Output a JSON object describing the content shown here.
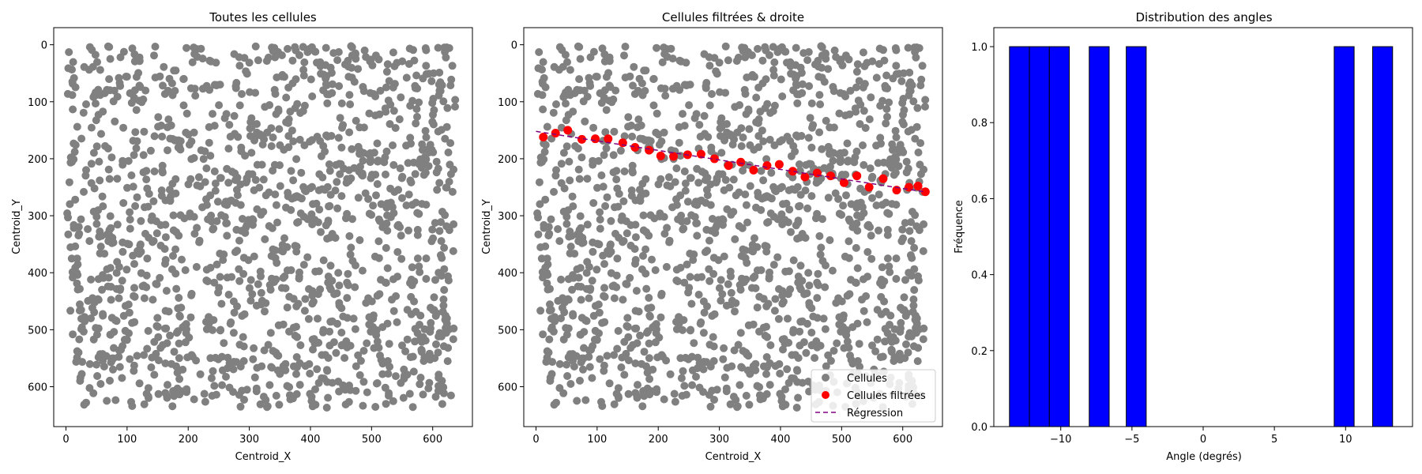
{
  "figure": {
    "panels": [
      {
        "title": "Toutes les cellules",
        "xlabel": "Centroid_X",
        "ylabel": "Centroid_Y"
      },
      {
        "title": "Cellules filtrées & droite",
        "xlabel": "Centroid_X",
        "ylabel": "Centroid_Y"
      },
      {
        "title": "Distribution des angles",
        "xlabel": "Angle (degrés)",
        "ylabel": "Fréquence"
      }
    ]
  },
  "chart_data": [
    {
      "type": "scatter",
      "title": "Toutes les cellules",
      "xlabel": "Centroid_X",
      "ylabel": "Centroid_Y",
      "xlim": [
        -20,
        665
      ],
      "ylim": [
        670,
        -30
      ],
      "y_inverted": true,
      "xticks": [
        0,
        100,
        200,
        300,
        400,
        500,
        600
      ],
      "yticks": [
        0,
        100,
        200,
        300,
        400,
        500,
        600
      ],
      "series": [
        {
          "color": "#808080",
          "description": "about 1500 grey cell centroids spread uniformly over x 0–640, y 0–640",
          "sample_points": [
            [
              5,
              30
            ],
            [
              40,
              80
            ],
            [
              120,
              140
            ],
            [
              220,
              210
            ],
            [
              310,
              300
            ],
            [
              420,
              380
            ],
            [
              510,
              460
            ],
            [
              600,
              540
            ],
            [
              90,
              620
            ],
            [
              630,
              610
            ]
          ]
        }
      ]
    },
    {
      "type": "scatter",
      "title": "Cellules filtrées & droite",
      "xlabel": "Centroid_X",
      "ylabel": "Centroid_Y",
      "xlim": [
        -20,
        665
      ],
      "ylim": [
        670,
        -30
      ],
      "y_inverted": true,
      "xticks": [
        0,
        100,
        200,
        300,
        400,
        500,
        600
      ],
      "yticks": [
        0,
        100,
        200,
        300,
        400,
        500,
        600
      ],
      "legend": {
        "position": "lower-right",
        "entries": [
          "Cellules",
          "Cellules filtrées",
          "Régression"
        ]
      },
      "series": [
        {
          "name": "Cellules",
          "color": "#808080",
          "marker": "circle"
        },
        {
          "name": "Cellules filtrées",
          "color": "#ff0000",
          "marker": "circle",
          "x": [
            12,
            32,
            52,
            75,
            97,
            118,
            142,
            162,
            185,
            204,
            225,
            248,
            270,
            292,
            315,
            335,
            356,
            378,
            398,
            420,
            440,
            460,
            482,
            504,
            525,
            545,
            568,
            590,
            610,
            625,
            637
          ],
          "y": [
            162,
            155,
            150,
            166,
            165,
            165,
            172,
            180,
            185,
            195,
            196,
            193,
            192,
            200,
            212,
            206,
            220,
            212,
            210,
            222,
            232,
            225,
            230,
            242,
            230,
            250,
            235,
            255,
            250,
            248,
            258
          ]
        },
        {
          "name": "Régression",
          "color": "#800080",
          "style": "dashed",
          "x": [
            0,
            635
          ],
          "y": [
            152,
            258
          ]
        }
      ]
    },
    {
      "type": "bar",
      "title": "Distribution des angles",
      "xlabel": "Angle (degrés)",
      "ylabel": "Fréquence",
      "xlim": [
        -14.7,
        14.7
      ],
      "ylim": [
        0,
        1.05
      ],
      "xticks": [
        -10,
        -5,
        0,
        5,
        10
      ],
      "yticks": [
        0.0,
        0.2,
        0.4,
        0.6,
        0.8,
        1.0
      ],
      "bar_color": "#0000ff",
      "edge_color": "#000000",
      "bins": [
        {
          "x0": -13.6,
          "x1": -12.2,
          "value": 1
        },
        {
          "x0": -12.2,
          "x1": -10.8,
          "value": 1
        },
        {
          "x0": -10.8,
          "x1": -9.4,
          "value": 1
        },
        {
          "x0": -8.0,
          "x1": -6.6,
          "value": 1
        },
        {
          "x0": -5.4,
          "x1": -4.0,
          "value": 1
        },
        {
          "x0": 9.2,
          "x1": 10.6,
          "value": 1
        },
        {
          "x0": 11.9,
          "x1": 13.3,
          "value": 1
        }
      ]
    }
  ]
}
